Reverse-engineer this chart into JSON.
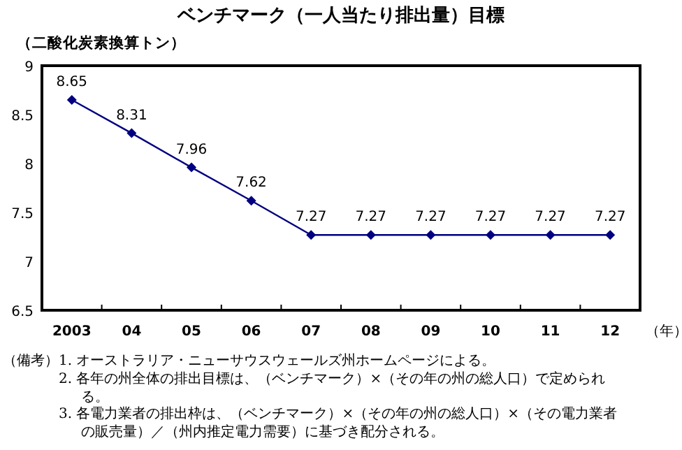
{
  "chart_data": {
    "type": "line",
    "title": "ベンチマーク（一人当たり排出量）目標",
    "ylabel": "（二酸化炭素換算トン）",
    "xlabel": "（年）",
    "categories": [
      "2003",
      "04",
      "05",
      "06",
      "07",
      "08",
      "09",
      "10",
      "11",
      "12"
    ],
    "series": [
      {
        "color": "#000080",
        "values": [
          8.65,
          8.31,
          7.96,
          7.62,
          7.27,
          7.27,
          7.27,
          7.27,
          7.27,
          7.27
        ]
      }
    ],
    "ylim": [
      6.5,
      9
    ],
    "yticks": [
      6.5,
      7,
      7.5,
      8,
      8.5,
      9
    ],
    "data_labels": true,
    "marker": "diamond",
    "line_style": "solid",
    "grid": false,
    "annotations": [
      "（備考）",
      "1. オーストラリア・ニューサウスウェールズ州ホームページによる。",
      "2. 各年の州全体の排出目標は、（ベンチマーク）×（その年の州の総人口）で定められる。",
      "3. 各電力業者の排出枠は、（ベンチマーク）×（その年の州の総人口）×（その電力業者の販売量）／（州内推定電力需要）に基づき配分される。"
    ]
  }
}
